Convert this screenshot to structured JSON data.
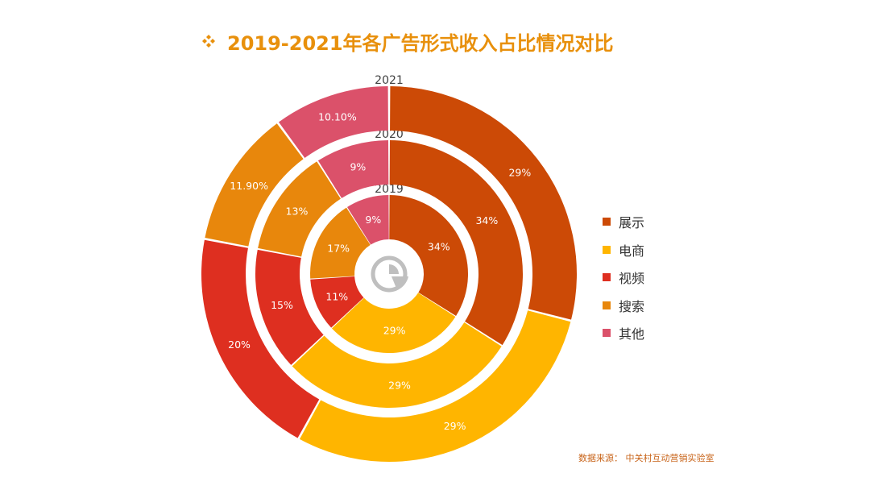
{
  "title": "2019-2021年各广告形式收入占比情况对比",
  "source": "数据来源： 中关村互动营销实验室",
  "colors": {
    "title": "#E8900C",
    "展示": "#CC4A06",
    "电商": "#FFB500",
    "视频": "#DE2F20",
    "搜索": "#E8870C",
    "其他": "#DB516A"
  },
  "legend": [
    "展示",
    "电商",
    "视频",
    "搜索",
    "其他"
  ],
  "center_icon": "pie-chart-icon",
  "chart_data": {
    "type": "pie",
    "subtype": "multi-level donut",
    "categories": [
      "展示",
      "电商",
      "视频",
      "搜索",
      "其他"
    ],
    "series": [
      {
        "name": "2019",
        "values": [
          34,
          29,
          11,
          17,
          9
        ],
        "labels": [
          "34%",
          "29%",
          "11%",
          "17%",
          "9%"
        ]
      },
      {
        "name": "2020",
        "values": [
          34,
          29,
          15,
          13,
          9
        ],
        "labels": [
          "34%",
          "29%",
          "15%",
          "13%",
          "9%"
        ]
      },
      {
        "name": "2021",
        "values": [
          29,
          29,
          20,
          11.9,
          10.1
        ],
        "labels": [
          "29%",
          "29%",
          "20%",
          "11.90%",
          "10.10%"
        ]
      }
    ],
    "legend_position": "right"
  }
}
